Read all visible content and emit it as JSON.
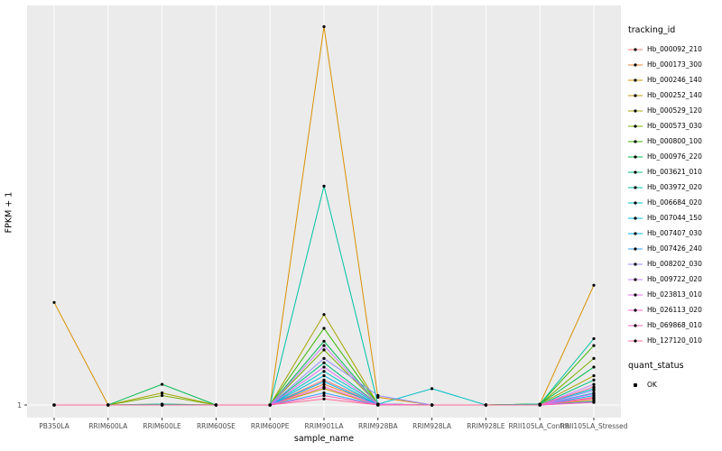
{
  "chart_data": {
    "type": "line",
    "title": "",
    "xlabel": "sample_name",
    "ylabel": "FPKM + 1",
    "y_ticks": [
      "1"
    ],
    "ylim": [
      1,
      450
    ],
    "panel_bg": "#EBEBEB",
    "grid_color": "#FFFFFF",
    "point_color": "#000000",
    "tick_text_color": "#4D4D4D",
    "legend_position": "right",
    "categories": [
      "PB350LA",
      "RRIM600LA",
      "RRIM600LE",
      "RRIM600SE",
      "RRIM600PE",
      "RRIM901LA",
      "RRIM928BA",
      "RRIM928LA",
      "RRIM928LE",
      "RRII105LA_Control",
      "RRII105LA_Stressed"
    ],
    "series": [
      {
        "name": "Hb_000092_210",
        "color": "#F8766D",
        "values": [
          1,
          1,
          1,
          1,
          1,
          30,
          2,
          1,
          1,
          1,
          10
        ]
      },
      {
        "name": "Hb_000173_300",
        "color": "#EA8331",
        "values": [
          1,
          1,
          1,
          1,
          1,
          25,
          2,
          1,
          1,
          1,
          8
        ]
      },
      {
        "name": "Hb_000246_140",
        "color": "#D89000",
        "values": [
          120,
          1,
          2,
          1,
          1,
          440,
          10,
          1,
          1,
          2,
          140
        ]
      },
      {
        "name": "Hb_000252_140",
        "color": "#C09B00",
        "values": [
          1,
          1,
          1,
          1,
          1,
          20,
          1,
          1,
          1,
          1,
          6
        ]
      },
      {
        "name": "Hb_000529_120",
        "color": "#A3A500",
        "values": [
          1,
          1,
          15,
          1,
          1,
          106,
          2,
          1,
          1,
          2,
          35
        ]
      },
      {
        "name": "Hb_000573_030",
        "color": "#7CAE00",
        "values": [
          1,
          1,
          12,
          1,
          1,
          65,
          2,
          1,
          1,
          2,
          55
        ]
      },
      {
        "name": "Hb_000800_100",
        "color": "#39B600",
        "values": [
          1,
          1,
          1,
          1,
          1,
          90,
          2,
          1,
          1,
          2,
          70
        ]
      },
      {
        "name": "Hb_000976_220",
        "color": "#00BB4E",
        "values": [
          1,
          1,
          25,
          1,
          1,
          75,
          2,
          1,
          1,
          2,
          45
        ]
      },
      {
        "name": "Hb_003621_010",
        "color": "#00BF7D",
        "values": [
          1,
          1,
          1,
          1,
          1,
          50,
          2,
          1,
          1,
          1,
          30
        ]
      },
      {
        "name": "Hb_003972_020",
        "color": "#00C1A3",
        "values": [
          1,
          1,
          2,
          1,
          1,
          255,
          2,
          1,
          1,
          2,
          78
        ]
      },
      {
        "name": "Hb_006684_020",
        "color": "#00BFC4",
        "values": [
          1,
          1,
          1,
          1,
          1,
          40,
          2,
          20,
          1,
          1,
          20
        ]
      },
      {
        "name": "Hb_007044_150",
        "color": "#00BAE0",
        "values": [
          1,
          1,
          1,
          1,
          1,
          35,
          1,
          1,
          1,
          1,
          15
        ]
      },
      {
        "name": "Hb_007407_030",
        "color": "#00B0F6",
        "values": [
          1,
          1,
          1,
          1,
          1,
          28,
          1,
          1,
          1,
          1,
          12
        ]
      },
      {
        "name": "Hb_007426_240",
        "color": "#35A2FF",
        "values": [
          1,
          1,
          1,
          1,
          1,
          15,
          1,
          1,
          1,
          1,
          5
        ]
      },
      {
        "name": "Hb_008202_030",
        "color": "#9590FF",
        "values": [
          1,
          1,
          1,
          1,
          1,
          55,
          12,
          1,
          1,
          1,
          18
        ]
      },
      {
        "name": "Hb_009722_020",
        "color": "#C77CFF",
        "values": [
          1,
          1,
          1,
          1,
          1,
          70,
          2,
          1,
          1,
          1,
          25
        ]
      },
      {
        "name": "Hb_023813_010",
        "color": "#E76BF3",
        "values": [
          1,
          1,
          1,
          1,
          1,
          45,
          2,
          1,
          1,
          1,
          14
        ]
      },
      {
        "name": "Hb_026113_020",
        "color": "#FA62DB",
        "values": [
          1,
          1,
          1,
          1,
          1,
          22,
          1,
          1,
          1,
          1,
          9
        ]
      },
      {
        "name": "Hb_069868_010",
        "color": "#FF62BC",
        "values": [
          1,
          1,
          1,
          1,
          1,
          12,
          1,
          1,
          1,
          1,
          4
        ]
      },
      {
        "name": "Hb_127120_010",
        "color": "#FF6A98",
        "values": [
          1,
          1,
          1,
          1,
          1,
          8,
          1,
          1,
          1,
          1,
          22
        ]
      }
    ]
  },
  "legend": {
    "tracking_title": "tracking_id",
    "quant_title": "quant_status",
    "quant_items": [
      {
        "label": "OK"
      }
    ]
  }
}
